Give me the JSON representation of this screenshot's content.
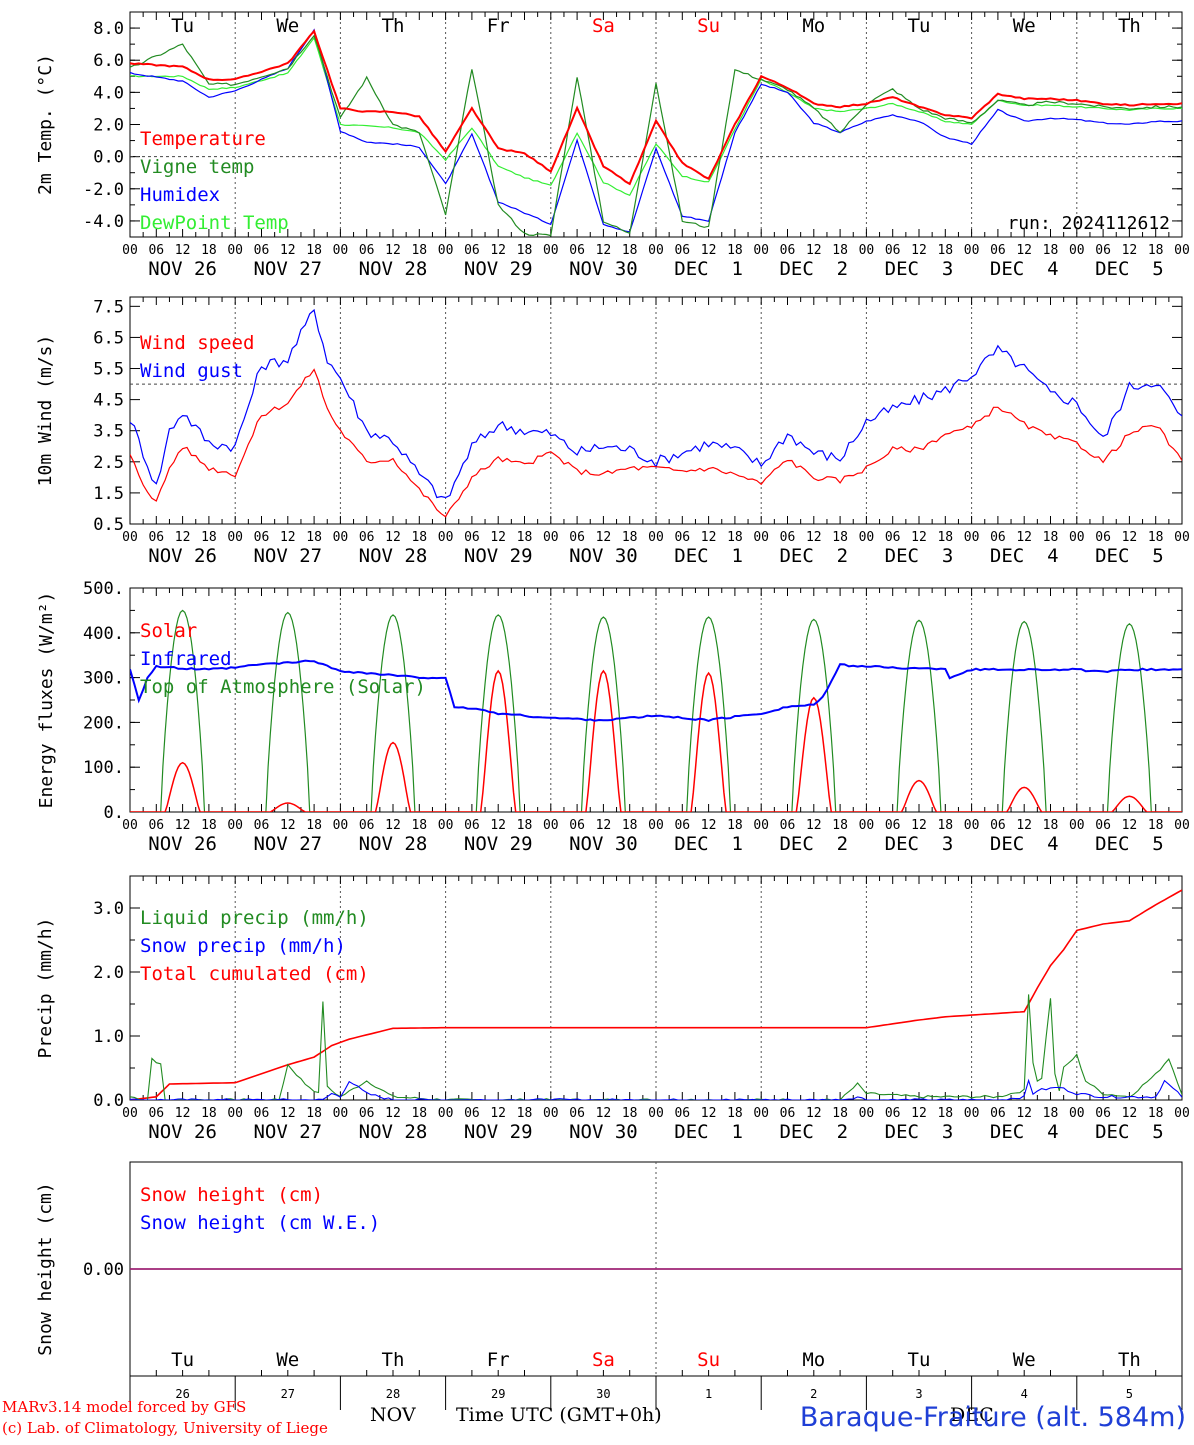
{
  "chart_data": [
    {
      "type": "line",
      "ylabel": "2m Temp. (°C)",
      "ylim": [
        -5,
        9
      ],
      "yticks": [
        "8.0",
        "6.0",
        "4.0",
        "2.0",
        "0.0",
        "-2.0",
        "-4.0"
      ],
      "ytick_values": [
        8,
        6,
        4,
        2,
        0,
        -2,
        -4
      ],
      "zero_line": 0,
      "top_day_labels": [
        {
          "text": "Tu",
          "color": "#000000"
        },
        {
          "text": "We",
          "color": "#000000"
        },
        {
          "text": "Th",
          "color": "#000000"
        },
        {
          "text": "Fr",
          "color": "#000000"
        },
        {
          "text": "Sa",
          "color": "#ff0000"
        },
        {
          "text": "Su",
          "color": "#ff0000"
        },
        {
          "text": "Mo",
          "color": "#000000"
        },
        {
          "text": "Tu",
          "color": "#000000"
        },
        {
          "text": "We",
          "color": "#000000"
        },
        {
          "text": "Th",
          "color": "#000000"
        }
      ],
      "run_label": "run: 2024112612",
      "legend": [
        {
          "name": "Temperature",
          "color": "#ff0000"
        },
        {
          "name": "Vigne temp",
          "color": "#228b22"
        },
        {
          "name": "Humidex",
          "color": "#0000ff"
        },
        {
          "name": "DewPoint Temp",
          "color": "#33ee33"
        }
      ],
      "x_hours": [
        0,
        12,
        18,
        24,
        36,
        42,
        48,
        54,
        60,
        66,
        72,
        78,
        84,
        90,
        96,
        102,
        108,
        114,
        120,
        126,
        132,
        138,
        144,
        150,
        156,
        162,
        168,
        174,
        180,
        186,
        192,
        198,
        204,
        210,
        216,
        222,
        228,
        234,
        240
      ],
      "series": [
        {
          "name": "Temperature",
          "color": "#ff0000",
          "values": [
            5.8,
            5.6,
            4.8,
            4.8,
            5.8,
            7.8,
            3.0,
            2.8,
            2.8,
            2.5,
            0.3,
            3.0,
            0.5,
            0.2,
            -0.9,
            3.0,
            -0.6,
            -1.7,
            2.2,
            -0.4,
            -1.4,
            2.0,
            5.0,
            4.3,
            3.3,
            3.1,
            3.3,
            3.7,
            3.1,
            2.6,
            2.4,
            3.9,
            3.6,
            3.6,
            3.5,
            3.3,
            3.2,
            3.3,
            3.3
          ]
        },
        {
          "name": "Vigne temp",
          "color": "#228b22",
          "values": [
            5.5,
            7.0,
            4.5,
            4.5,
            5.5,
            7.6,
            2.4,
            4.9,
            2.0,
            1.5,
            -3.6,
            5.5,
            -3.0,
            -4.8,
            -4.9,
            5.0,
            -4.0,
            -4.8,
            4.6,
            -4.0,
            -4.4,
            5.4,
            4.8,
            4.2,
            3.0,
            1.5,
            3.3,
            4.2,
            3.0,
            2.4,
            2.1,
            3.5,
            3.2,
            3.4,
            3.3,
            3.1,
            3.0,
            3.1,
            3.1
          ]
        },
        {
          "name": "Humidex",
          "color": "#0000ff",
          "values": [
            5.2,
            4.7,
            3.7,
            4.1,
            5.5,
            7.9,
            1.6,
            0.9,
            0.8,
            0.6,
            -1.7,
            1.4,
            -2.8,
            -3.5,
            -4.2,
            1.0,
            -4.2,
            -4.7,
            0.5,
            -3.7,
            -4.0,
            1.5,
            4.5,
            4.0,
            2.1,
            1.5,
            2.2,
            2.6,
            2.2,
            1.2,
            0.8,
            2.9,
            2.2,
            2.4,
            2.3,
            2.1,
            2.0,
            2.2,
            2.2
          ]
        },
        {
          "name": "DewPoint Temp",
          "color": "#33ee33",
          "values": [
            5.0,
            5.0,
            4.2,
            4.3,
            5.2,
            7.4,
            2.0,
            1.9,
            1.8,
            1.5,
            -0.2,
            1.8,
            -0.6,
            -1.3,
            -1.8,
            1.5,
            -1.6,
            -2.4,
            0.8,
            -1.2,
            -1.6,
            1.7,
            4.8,
            4.0,
            3.0,
            2.8,
            3.0,
            3.3,
            2.8,
            2.2,
            2.0,
            3.5,
            3.2,
            3.2,
            3.1,
            3.0,
            2.9,
            3.0,
            3.0
          ]
        }
      ]
    },
    {
      "type": "line",
      "ylabel": "10m Wind (m/s)",
      "ylim": [
        0.5,
        7.8
      ],
      "yticks": [
        "7.5",
        "6.5",
        "5.5",
        "4.5",
        "3.5",
        "2.5",
        "1.5",
        "0.5"
      ],
      "ytick_values": [
        7.5,
        6.5,
        5.5,
        4.5,
        3.5,
        2.5,
        1.5,
        0.5
      ],
      "ref_line": 5.0,
      "legend": [
        {
          "name": "Wind speed",
          "color": "#ff0000"
        },
        {
          "name": "Wind gust",
          "color": "#0000ff"
        }
      ],
      "x_hours": [
        0,
        3,
        6,
        9,
        12,
        18,
        24,
        30,
        36,
        42,
        45,
        48,
        54,
        60,
        66,
        72,
        78,
        84,
        90,
        96,
        102,
        108,
        114,
        120,
        126,
        132,
        138,
        144,
        150,
        156,
        162,
        168,
        174,
        180,
        186,
        192,
        198,
        204,
        210,
        216,
        222,
        228,
        234,
        240
      ],
      "series": [
        {
          "name": "Wind speed",
          "color": "#ff0000",
          "values": [
            2.7,
            1.8,
            1.2,
            2.3,
            3.0,
            2.3,
            2.1,
            4.0,
            4.4,
            5.5,
            4.2,
            3.5,
            2.5,
            2.6,
            1.6,
            0.7,
            2.0,
            2.6,
            2.4,
            2.8,
            2.2,
            2.1,
            2.3,
            2.3,
            2.2,
            2.3,
            2.1,
            1.8,
            2.6,
            2.0,
            1.9,
            2.3,
            2.9,
            2.9,
            3.4,
            3.6,
            4.3,
            3.7,
            3.3,
            3.1,
            2.5,
            3.4,
            3.7,
            2.5
          ]
        },
        {
          "name": "Wind gust",
          "color": "#0000ff",
          "values": [
            3.9,
            2.8,
            1.7,
            3.5,
            4.1,
            3.1,
            3.0,
            5.6,
            5.8,
            7.4,
            5.8,
            5.2,
            3.5,
            3.2,
            2.1,
            1.2,
            3.0,
            3.7,
            3.5,
            3.4,
            2.8,
            3.0,
            2.9,
            2.5,
            2.8,
            3.1,
            2.9,
            2.4,
            3.4,
            2.8,
            2.6,
            3.8,
            4.2,
            4.5,
            4.8,
            5.3,
            6.1,
            5.5,
            4.7,
            4.4,
            3.2,
            4.9,
            5.1,
            3.9
          ]
        }
      ]
    },
    {
      "type": "line",
      "ylabel": "Energy fluxes (W/m²)",
      "ylim": [
        0,
        500
      ],
      "yticks": [
        "500.",
        "400.",
        "300.",
        "200.",
        "100.",
        "0."
      ],
      "ytick_values": [
        500,
        400,
        300,
        200,
        100,
        0
      ],
      "legend": [
        {
          "name": "Solar",
          "color": "#ff0000"
        },
        {
          "name": "Infrared",
          "color": "#0000ff"
        },
        {
          "name": "Top of Atmosphere (Solar)",
          "color": "#228b22"
        }
      ],
      "toa_peaks": [
        450,
        445,
        440,
        440,
        435,
        435,
        430,
        428,
        425,
        420
      ],
      "solar_peaks": [
        110,
        20,
        155,
        315,
        315,
        310,
        255,
        70,
        55,
        35
      ],
      "infrared": {
        "name": "Infrared",
        "x_hours": [
          0,
          2,
          4,
          6,
          12,
          18,
          24,
          30,
          36,
          42,
          45,
          48,
          54,
          60,
          66,
          72,
          74,
          78,
          84,
          96,
          108,
          120,
          132,
          144,
          150,
          156,
          158,
          162,
          168,
          180,
          186,
          187,
          192,
          204,
          216,
          222,
          228,
          240
        ],
        "values": [
          320,
          250,
          300,
          325,
          320,
          318,
          322,
          330,
          333,
          338,
          325,
          315,
          310,
          305,
          300,
          300,
          232,
          232,
          220,
          210,
          205,
          215,
          205,
          220,
          235,
          240,
          255,
          328,
          325,
          320,
          320,
          300,
          318,
          318,
          318,
          312,
          318,
          318
        ]
      }
    },
    {
      "type": "line",
      "ylabel": "Precip (mm/h)",
      "ylim": [
        0,
        3.5
      ],
      "yticks": [
        "3.0",
        "2.0",
        "1.0",
        "0.0"
      ],
      "ytick_values": [
        3.0,
        2.0,
        1.0,
        0.0
      ],
      "legend": [
        {
          "name": "Liquid precip (mm/h)",
          "color": "#228b22"
        },
        {
          "name": "Snow precip (mm/h)",
          "color": "#0000ff"
        },
        {
          "name": "Total cumulated (cm)",
          "color": "#ff0000"
        }
      ],
      "series": [
        {
          "name": "Total cumulated (cm)",
          "color": "#ff0000",
          "x_hours": [
            0,
            6,
            9,
            24,
            36,
            42,
            46,
            50,
            60,
            72,
            120,
            168,
            180,
            186,
            204,
            207,
            210,
            213,
            216,
            222,
            228,
            234,
            240
          ],
          "values": [
            0.0,
            0.05,
            0.25,
            0.27,
            0.55,
            0.67,
            0.85,
            0.95,
            1.12,
            1.13,
            1.13,
            1.13,
            1.25,
            1.3,
            1.38,
            1.75,
            2.1,
            2.35,
            2.65,
            2.75,
            2.8,
            3.05,
            3.28
          ]
        },
        {
          "name": "Liquid precip (mm/h)",
          "color": "#228b22",
          "x_hours": [
            0,
            4,
            5,
            7,
            8,
            12,
            24,
            34,
            36,
            40,
            43,
            44,
            45,
            48,
            54,
            60,
            72,
            156,
            162,
            166,
            168,
            180,
            198,
            204,
            205,
            206,
            207,
            208,
            210,
            211,
            212,
            213,
            216,
            218,
            222,
            228,
            234,
            237,
            240
          ],
          "values": [
            0.05,
            0.0,
            0.65,
            0.55,
            0.0,
            0.0,
            0.0,
            0.0,
            0.55,
            0.25,
            0.1,
            1.55,
            0.2,
            0.05,
            0.3,
            0.05,
            0.0,
            0.0,
            0.0,
            0.25,
            0.1,
            0.05,
            0.05,
            0.15,
            1.65,
            0.6,
            0.3,
            0.35,
            1.6,
            0.4,
            0.15,
            0.5,
            0.7,
            0.3,
            0.1,
            0.05,
            0.4,
            0.65,
            0.1
          ]
        },
        {
          "name": "Snow precip (mm/h)",
          "color": "#0000ff",
          "x_hours": [
            0,
            6,
            44,
            46,
            48,
            50,
            54,
            60,
            72,
            156,
            162,
            166,
            168,
            198,
            204,
            205,
            206,
            207,
            212,
            216,
            222,
            228,
            234,
            236,
            240
          ],
          "values": [
            0.0,
            0.0,
            0.0,
            0.1,
            0.05,
            0.3,
            0.1,
            0.0,
            0.0,
            0.0,
            0.0,
            0.05,
            0.0,
            0.0,
            0.05,
            0.3,
            0.1,
            0.15,
            0.2,
            0.1,
            0.05,
            0.05,
            0.05,
            0.3,
            0.05
          ]
        }
      ]
    },
    {
      "type": "line",
      "ylabel": "Snow height (cm)",
      "ylim": [
        -1,
        1
      ],
      "yticks": [
        "0.00"
      ],
      "ytick_values": [
        0
      ],
      "legend": [
        {
          "name": "Snow height (cm)",
          "color": "#ff0000"
        },
        {
          "name": "Snow height (cm W.E.)",
          "color": "#0000ff"
        }
      ],
      "series": [
        {
          "name": "Snow height (cm)",
          "color": "#ff0000",
          "values": [
            0,
            0
          ]
        },
        {
          "name": "Snow height (cm W.E.)",
          "color": "#0000ff",
          "values": [
            0,
            0
          ]
        }
      ],
      "bottom_day_labels": [
        {
          "text": "Tu",
          "color": "#000000"
        },
        {
          "text": "We",
          "color": "#000000"
        },
        {
          "text": "Th",
          "color": "#000000"
        },
        {
          "text": "Fr",
          "color": "#000000"
        },
        {
          "text": "Sa",
          "color": "#ff0000"
        },
        {
          "text": "Su",
          "color": "#ff0000"
        },
        {
          "text": "Mo",
          "color": "#000000"
        },
        {
          "text": "Tu",
          "color": "#000000"
        },
        {
          "text": "We",
          "color": "#000000"
        },
        {
          "text": "Th",
          "color": "#000000"
        }
      ],
      "bottom_day_numbers": [
        "26",
        "27",
        "28",
        "29",
        "30",
        "1",
        "2",
        "3",
        "4",
        "5"
      ]
    }
  ],
  "x_axis": {
    "hour_ticks": [
      "00",
      "06",
      "12",
      "18"
    ],
    "end_tick": "00",
    "date_labels": [
      "NOV 26",
      "NOV 27",
      "NOV 28",
      "NOV 29",
      "NOV 30",
      "DEC  1",
      "DEC  2",
      "DEC  3",
      "DEC  4",
      "DEC  5"
    ],
    "total_hours": 240
  },
  "footer": {
    "credit_line1": "MARv3.14 model forced by GFS",
    "credit_line2": "(c) Lab. of Climatology, University of Liege",
    "month_left": "NOV",
    "time_label": "Time UTC (GMT+0h)",
    "month_right": "DEC",
    "station": "Baraque-Fraiture (alt. 584m)"
  }
}
